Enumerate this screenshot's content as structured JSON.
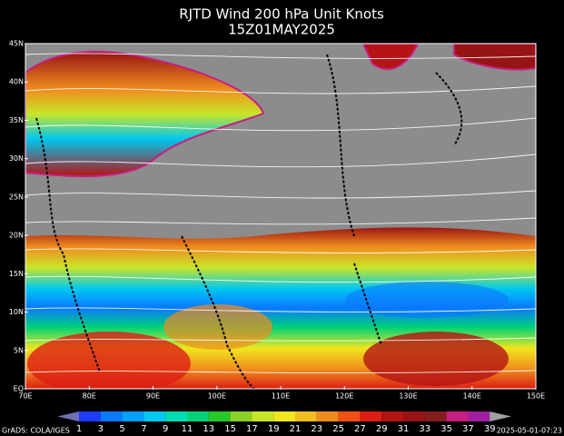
{
  "title": {
    "line1": "RJTD Wind 200 hPa Unit Knots",
    "line2": "15Z01MAY2025"
  },
  "map": {
    "lat_labels": [
      "45N",
      "40N",
      "35N",
      "30N",
      "25N",
      "20N",
      "15N",
      "10N",
      "5N",
      "EQ"
    ],
    "lon_labels": [
      "70E",
      "80E",
      "90E",
      "100E",
      "110E",
      "120E",
      "130E",
      "140E",
      "150E"
    ]
  },
  "colorbar": {
    "levels": [
      1,
      3,
      5,
      7,
      9,
      11,
      13,
      15,
      17,
      19,
      21,
      23,
      25,
      27,
      29,
      31,
      33,
      35,
      37,
      39
    ],
    "colors": [
      "#6e6eb4",
      "#1e3cff",
      "#0a78ff",
      "#00a0ff",
      "#00c8f0",
      "#00dcb4",
      "#00d278",
      "#28c828",
      "#8cd228",
      "#c8e628",
      "#f0e61e",
      "#f0be1e",
      "#f08c1e",
      "#f05014",
      "#dc1e14",
      "#b41414",
      "#961414",
      "#821e1e",
      "#c81e82",
      "#a01ea0",
      "#a0a0a0"
    ]
  },
  "footer": {
    "credit": "GrADS: COLA/IGES",
    "timestamp": "2025-05-01-07:23"
  }
}
